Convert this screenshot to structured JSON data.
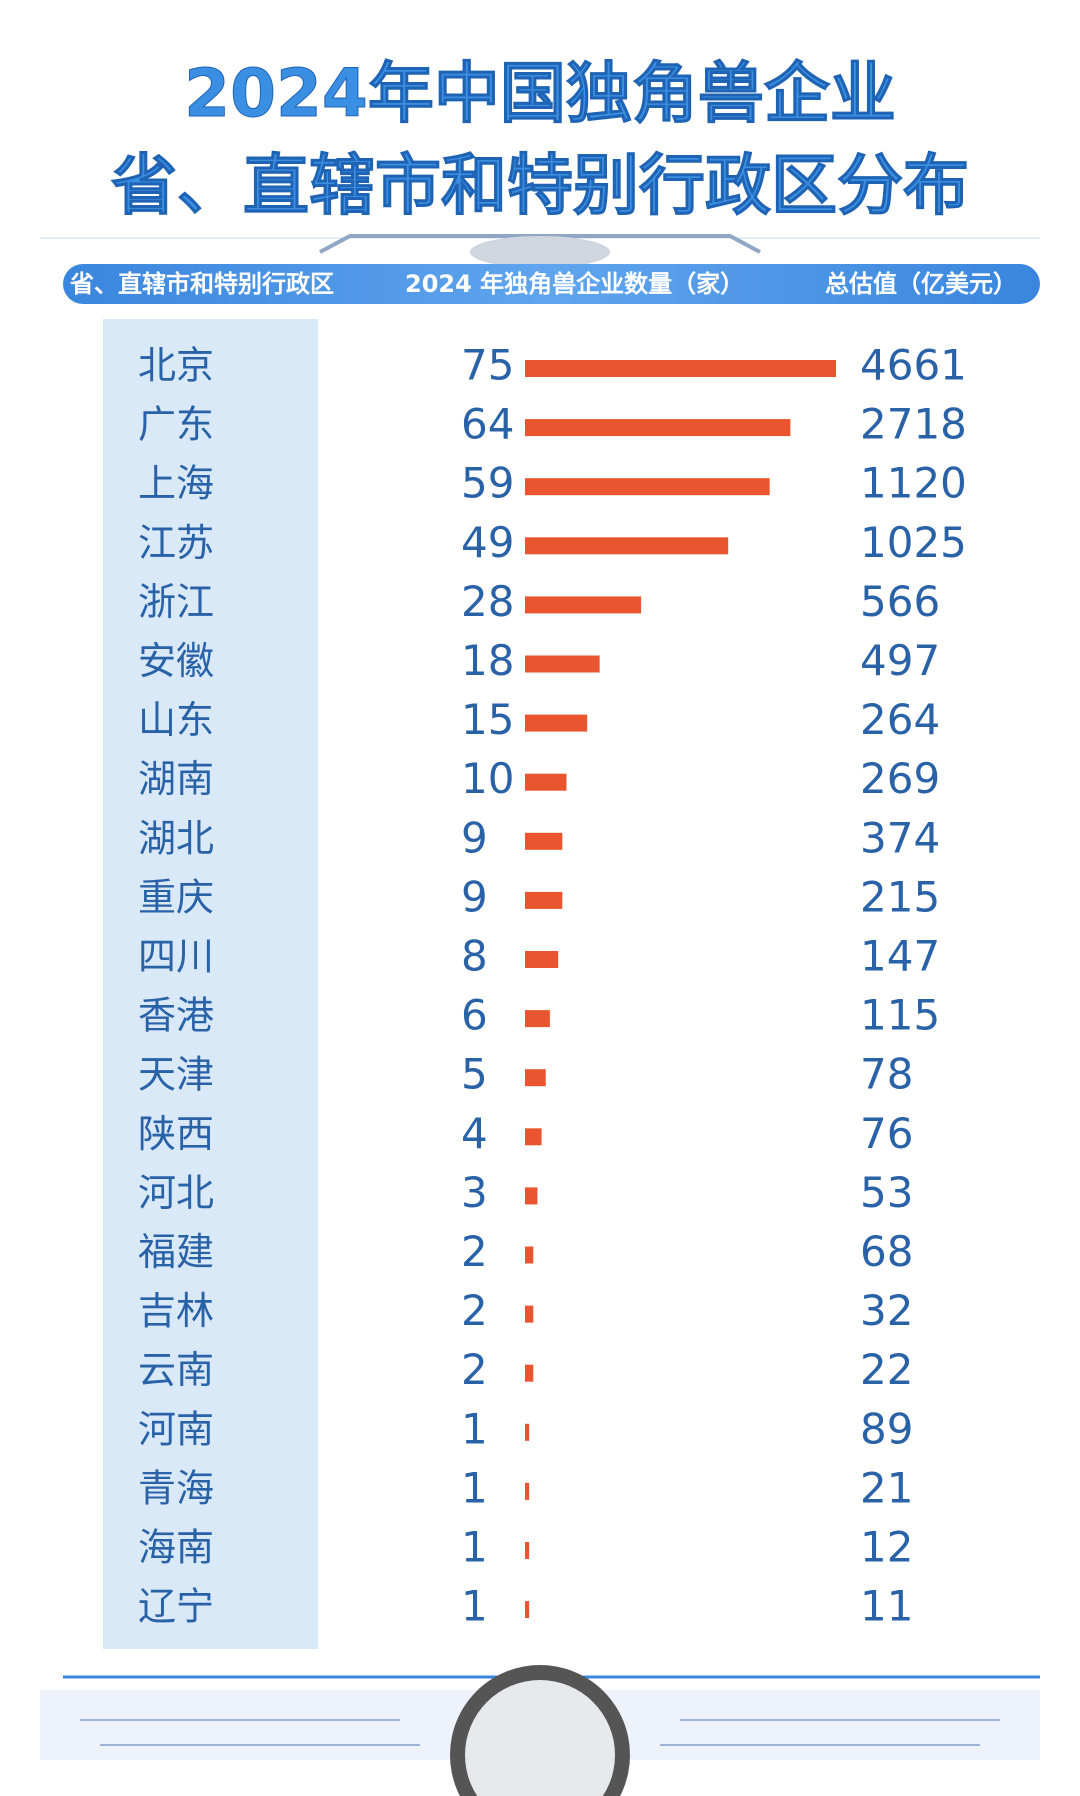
{
  "chart_data": {
    "type": "bar",
    "title": "2024年中国独角兽企业",
    "subtitle": "省、直辖市和特别行政区分布",
    "column_headers": [
      "省、直辖市和特别行政区",
      "2024 年独角兽企业数量（家）",
      "总估值（亿美元）"
    ],
    "categories": [
      "北京",
      "广东",
      "上海",
      "江苏",
      "浙江",
      "安徽",
      "山东",
      "湖南",
      "湖北",
      "重庆",
      "四川",
      "香港",
      "天津",
      "陕西",
      "河北",
      "福建",
      "吉林",
      "云南",
      "河南",
      "青海",
      "海南",
      "辽宁"
    ],
    "values": [
      75,
      64,
      59,
      49,
      28,
      18,
      15,
      10,
      9,
      9,
      8,
      6,
      5,
      4,
      3,
      2,
      2,
      2,
      1,
      1,
      1,
      1
    ],
    "valuations": [
      4661,
      2718,
      1120,
      1025,
      566,
      497,
      264,
      269,
      374,
      215,
      147,
      115,
      78,
      76,
      53,
      68,
      32,
      22,
      89,
      21,
      12,
      11
    ],
    "color": "#e8552f"
  }
}
